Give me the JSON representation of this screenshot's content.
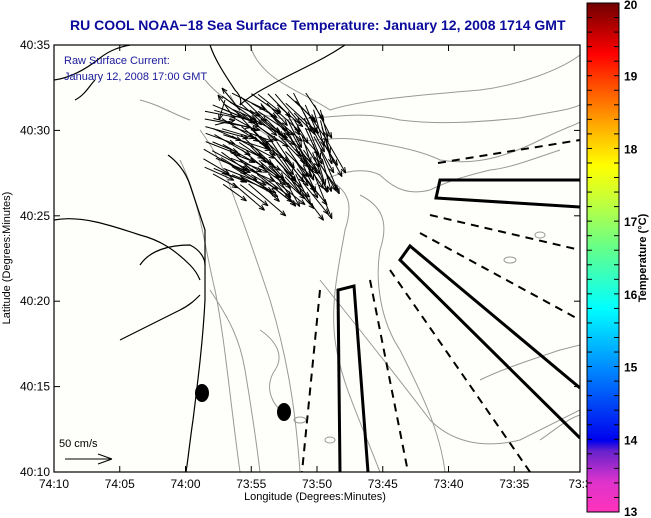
{
  "title": "RU COOL  NOAA−18  Sea Surface Temperature:  January 12, 2008 1714 GMT",
  "overlay": {
    "line1": "Raw Surface Current:",
    "line2": "January 12, 2008 17:00 GMT"
  },
  "scale_arrow": {
    "label": "50 cm/s",
    "value_cm_s": 50
  },
  "axes": {
    "xlabel": "Longitude (Degrees:Minutes)",
    "ylabel": "Latitude (Degrees:Minutes)",
    "x_ticks": [
      "74:10",
      "74:05",
      "74:00",
      "73:55",
      "73:50",
      "73:45",
      "73:40",
      "73:35",
      "73:3"
    ],
    "y_ticks": [
      "40:35",
      "40:30",
      "40:25",
      "40:20",
      "40:15",
      "40:10"
    ]
  },
  "colorbar": {
    "title": "Temperature (°C)",
    "min": 13,
    "max": 20,
    "ticks": [
      "20",
      "19",
      "18",
      "17",
      "16",
      "15",
      "14",
      "13"
    ],
    "colors": [
      "#ff33bb",
      "#cc33cc",
      "#0000ee",
      "#0080ff",
      "#00ffff",
      "#66ff66",
      "#ffff00",
      "#ffaa00",
      "#ff4400",
      "#ff0000",
      "#770000"
    ]
  },
  "chart_data": {
    "type": "map",
    "title": "RU COOL  NOAA−18  Sea Surface Temperature:  January 12, 2008 1714 GMT",
    "xlabel": "Longitude (Degrees:Minutes)",
    "ylabel": "Latitude (Degrees:Minutes)",
    "xlim": [
      "74:10 W",
      "73:30 W"
    ],
    "ylim": [
      "40:10 N",
      "40:35 N"
    ],
    "legend": {
      "colorbar": "right",
      "scale_arrow": "bottom-left",
      "annotation": "top-left"
    },
    "markers": [
      {
        "name": "station-1",
        "lon": "73:58.7 W",
        "lat": "40:14.6 N"
      },
      {
        "name": "station-2",
        "lon": "73:52.3 W",
        "lat": "40:13.6 N"
      }
    ],
    "current_field": "surface current vectors concentrated near 40:26-40:32 N, 73:51-74:00 W, flowing predominantly toward the southeast"
  }
}
